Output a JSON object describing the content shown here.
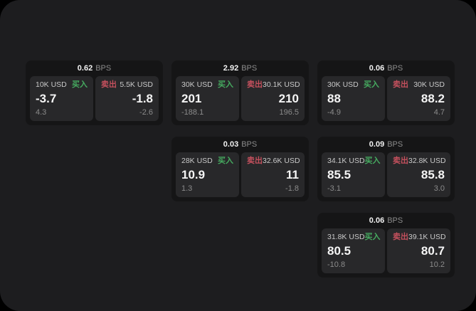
{
  "labels": {
    "bps": "BPS",
    "buy": "买入",
    "sell": "卖出"
  },
  "colors": {
    "canvas_bg": "#000000",
    "surface_bg": "#1d1d1f",
    "card_bg": "#151516",
    "tile_bg": "#28282a",
    "buy_green": "#46ab60",
    "sell_red": "#c4505d"
  },
  "cards": [
    {
      "bps": "0.62",
      "col": 1,
      "row": 1,
      "buy": {
        "amount": "10K USD",
        "price": "-3.7",
        "delta": "4.3"
      },
      "sell": {
        "amount": "5.5K USD",
        "price": "-1.8",
        "delta": "-2.6"
      }
    },
    {
      "bps": "2.92",
      "col": 2,
      "row": 1,
      "buy": {
        "amount": "30K USD",
        "price": "201",
        "delta": "-188.1"
      },
      "sell": {
        "amount": "30.1K USD",
        "price": "210",
        "delta": "196.5"
      }
    },
    {
      "bps": "0.06",
      "col": 3,
      "row": 1,
      "buy": {
        "amount": "30K USD",
        "price": "88",
        "delta": "-4.9"
      },
      "sell": {
        "amount": "30K USD",
        "price": "88.2",
        "delta": "4.7"
      }
    },
    {
      "bps": "0.03",
      "col": 2,
      "row": 2,
      "buy": {
        "amount": "28K USD",
        "price": "10.9",
        "delta": "1.3"
      },
      "sell": {
        "amount": "32.6K USD",
        "price": "11",
        "delta": "-1.8"
      }
    },
    {
      "bps": "0.09",
      "col": 3,
      "row": 2,
      "buy": {
        "amount": "34.1K USD",
        "price": "85.5",
        "delta": "-3.1"
      },
      "sell": {
        "amount": "32.8K USD",
        "price": "85.8",
        "delta": "3.0"
      }
    },
    {
      "bps": "0.06",
      "col": 3,
      "row": 3,
      "buy": {
        "amount": "31.8K USD",
        "price": "80.5",
        "delta": "-10.8"
      },
      "sell": {
        "amount": "39.1K USD",
        "price": "80.7",
        "delta": "10.2"
      }
    }
  ]
}
